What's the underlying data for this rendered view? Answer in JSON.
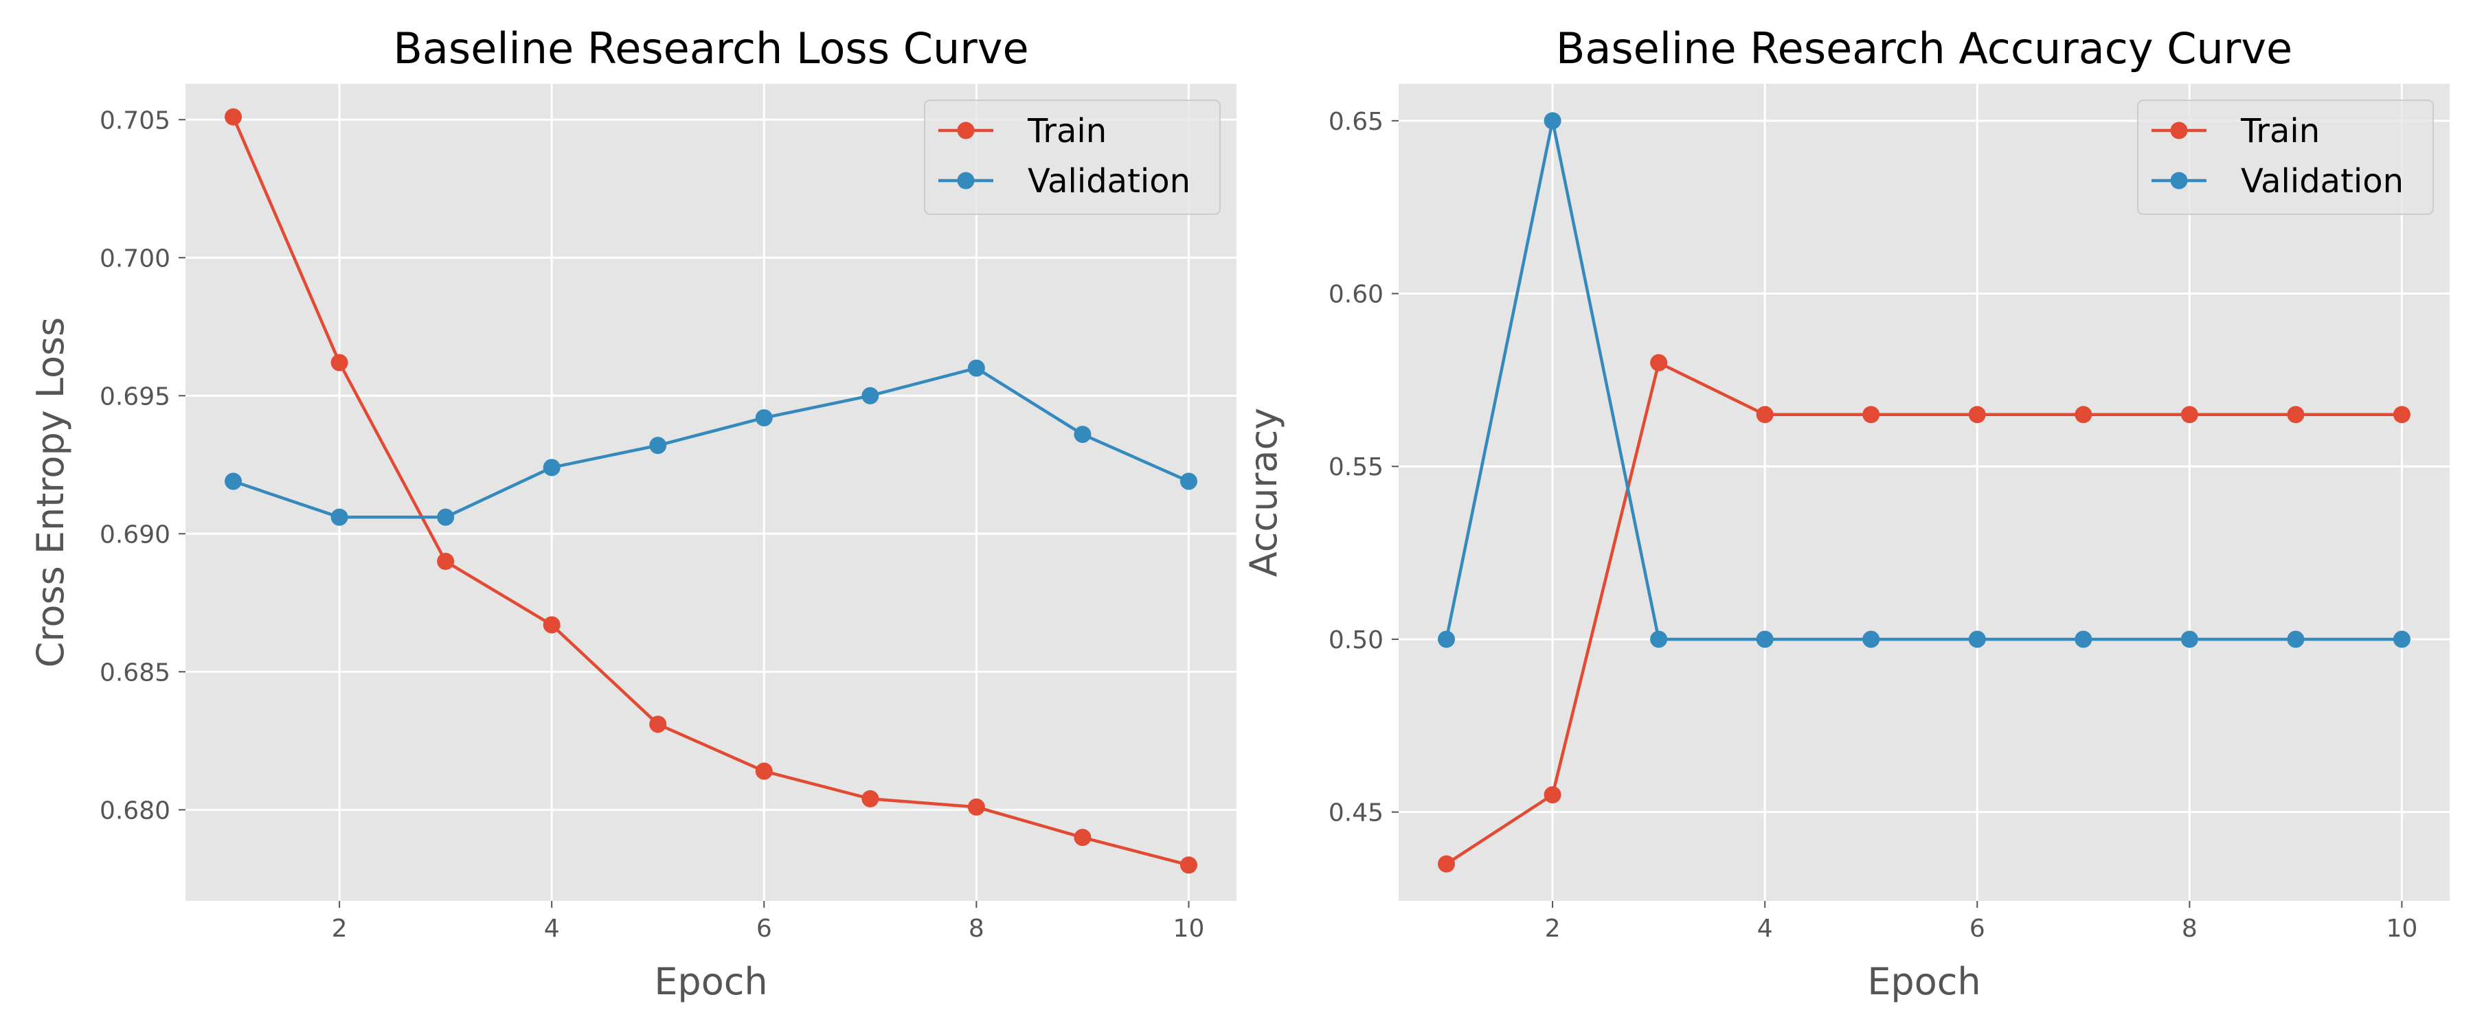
{
  "chart_data": [
    {
      "type": "line",
      "title": "Baseline Research Loss Curve",
      "xlabel": "Epoch",
      "ylabel": "Cross Entropy Loss",
      "xlim": [
        0.55,
        10.45
      ],
      "ylim": [
        0.6767,
        0.7063
      ],
      "xticks": [
        2,
        4,
        6,
        8,
        10
      ],
      "xtick_labels": [
        "2",
        "4",
        "6",
        "8",
        "10"
      ],
      "yticks": [
        0.68,
        0.685,
        0.69,
        0.695,
        0.7,
        0.705
      ],
      "ytick_labels": [
        "0.680",
        "0.685",
        "0.690",
        "0.695",
        "0.700",
        "0.705"
      ],
      "grid": true,
      "legend_position": "top-right",
      "x": [
        1,
        2,
        3,
        4,
        5,
        6,
        7,
        8,
        9,
        10
      ],
      "series": [
        {
          "name": "Train",
          "color": "#E24A33",
          "values": [
            0.7051,
            0.6962,
            0.689,
            0.6867,
            0.6831,
            0.6814,
            0.6804,
            0.6801,
            0.679,
            0.678
          ]
        },
        {
          "name": "Validation",
          "color": "#348ABD",
          "values": [
            0.6919,
            0.6906,
            0.6906,
            0.6924,
            0.6932,
            0.6942,
            0.695,
            0.696,
            0.6936,
            0.6919
          ]
        }
      ]
    },
    {
      "type": "line",
      "title": "Baseline Research Accuracy Curve",
      "xlabel": "Epoch",
      "ylabel": "Accuracy",
      "xlim": [
        0.55,
        10.45
      ],
      "ylim": [
        0.4243,
        0.6607
      ],
      "xticks": [
        2,
        4,
        6,
        8,
        10
      ],
      "xtick_labels": [
        "2",
        "4",
        "6",
        "8",
        "10"
      ],
      "yticks": [
        0.45,
        0.5,
        0.55,
        0.6,
        0.65
      ],
      "ytick_labels": [
        "0.45",
        "0.50",
        "0.55",
        "0.60",
        "0.65"
      ],
      "grid": true,
      "legend_position": "top-right",
      "x": [
        1,
        2,
        3,
        4,
        5,
        6,
        7,
        8,
        9,
        10
      ],
      "series": [
        {
          "name": "Train",
          "color": "#E24A33",
          "values": [
            0.435,
            0.455,
            0.58,
            0.565,
            0.565,
            0.565,
            0.565,
            0.565,
            0.565,
            0.565
          ]
        },
        {
          "name": "Validation",
          "color": "#348ABD",
          "values": [
            0.5,
            0.65,
            0.5,
            0.5,
            0.5,
            0.5,
            0.5,
            0.5,
            0.5,
            0.5
          ]
        }
      ]
    }
  ],
  "style": {
    "axes_background": "#E5E5E5",
    "grid_color": "#FFFFFF",
    "text_color": "#555555",
    "title_color": "#000000"
  }
}
